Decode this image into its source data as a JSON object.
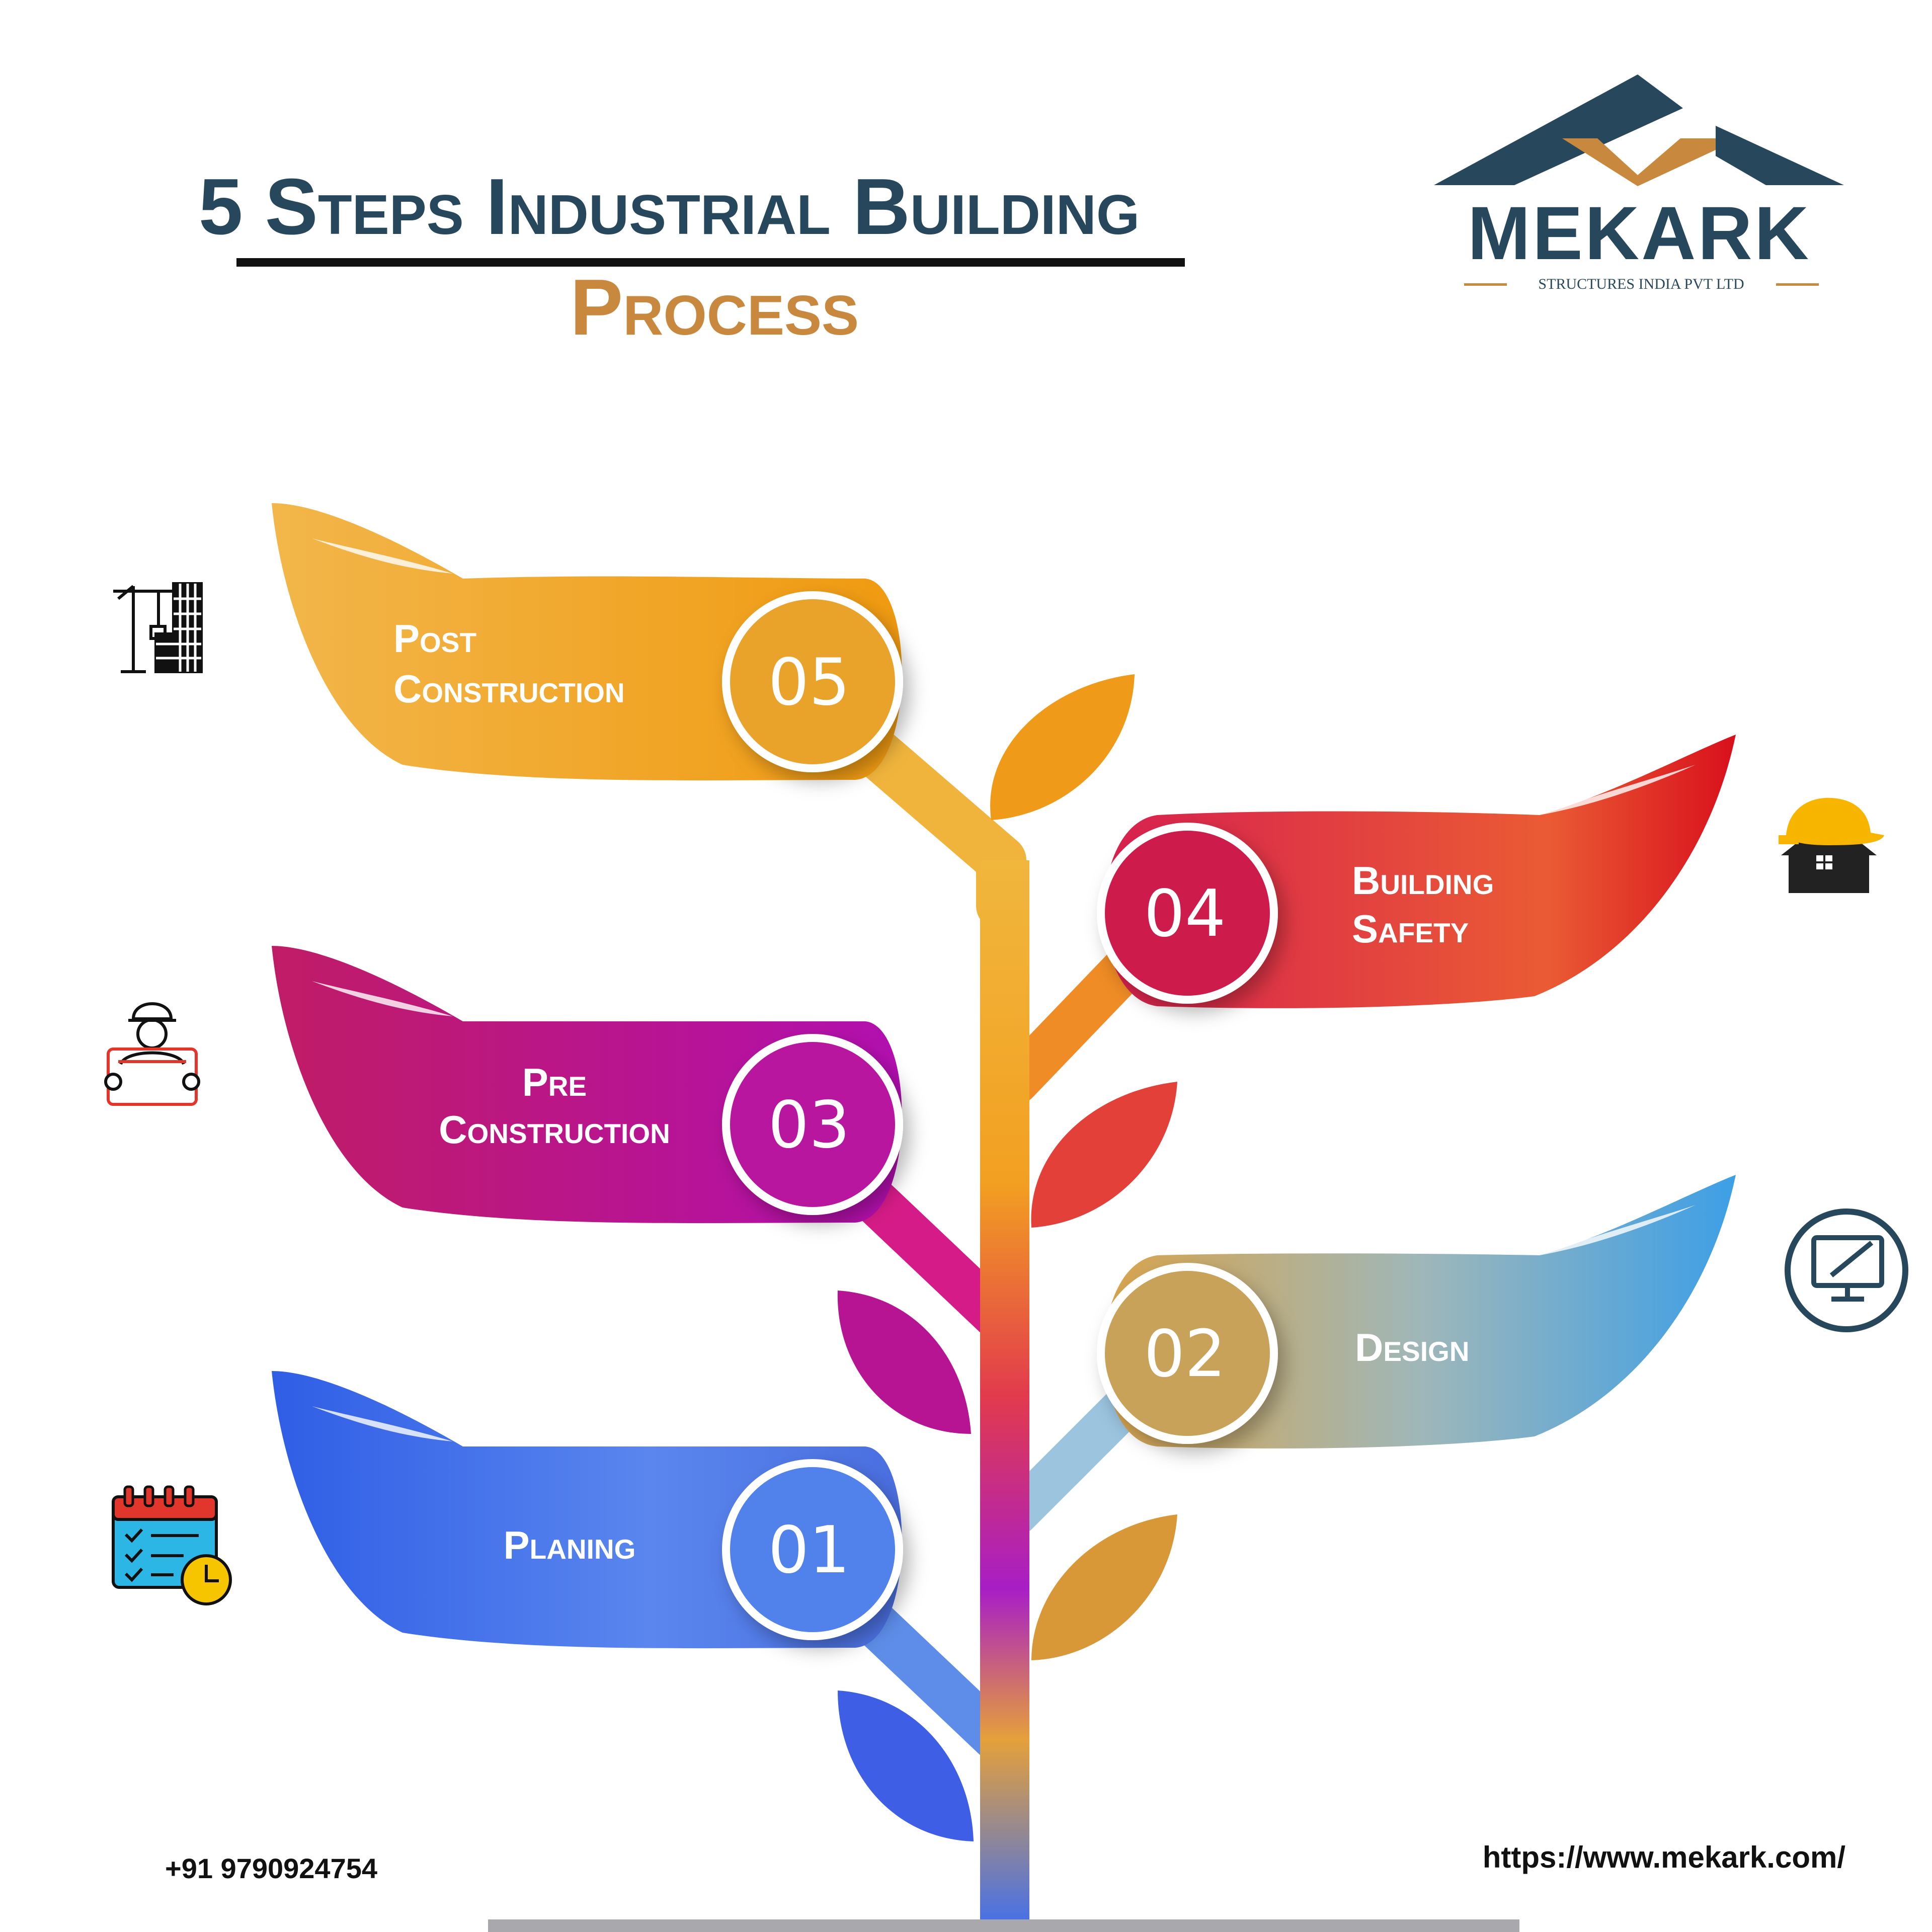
{
  "title": {
    "line1": "5 Steps Industrial Building",
    "line2": "Process"
  },
  "logo": {
    "brand": "MEKARK",
    "tagline": "STRUCTURES INDIA PVT LTD"
  },
  "steps": [
    {
      "number": "05",
      "label1": "Post",
      "label2": "Construction",
      "icon": "crane-building-icon"
    },
    {
      "number": "04",
      "label1": "Building",
      "label2": "Safety",
      "icon": "hardhat-house-icon"
    },
    {
      "number": "03",
      "label1": "Pre",
      "label2": "Construction",
      "icon": "engineer-blueprint-icon"
    },
    {
      "number": "02",
      "label1": "Design",
      "label2": "",
      "icon": "monitor-pen-icon"
    },
    {
      "number": "01",
      "label1": "Planing",
      "label2": "",
      "icon": "calendar-checklist-icon"
    }
  ],
  "footer": {
    "phone": "+91 9790924754",
    "url": "https://www.mekark.com/"
  },
  "colors": {
    "navy": "#27475c",
    "copper": "#c8883d",
    "step05": "#f0a92b",
    "step04": "#e03f43",
    "step03": "#c41a86",
    "step02": "#9fb8c0",
    "step01": "#4a78e8"
  }
}
